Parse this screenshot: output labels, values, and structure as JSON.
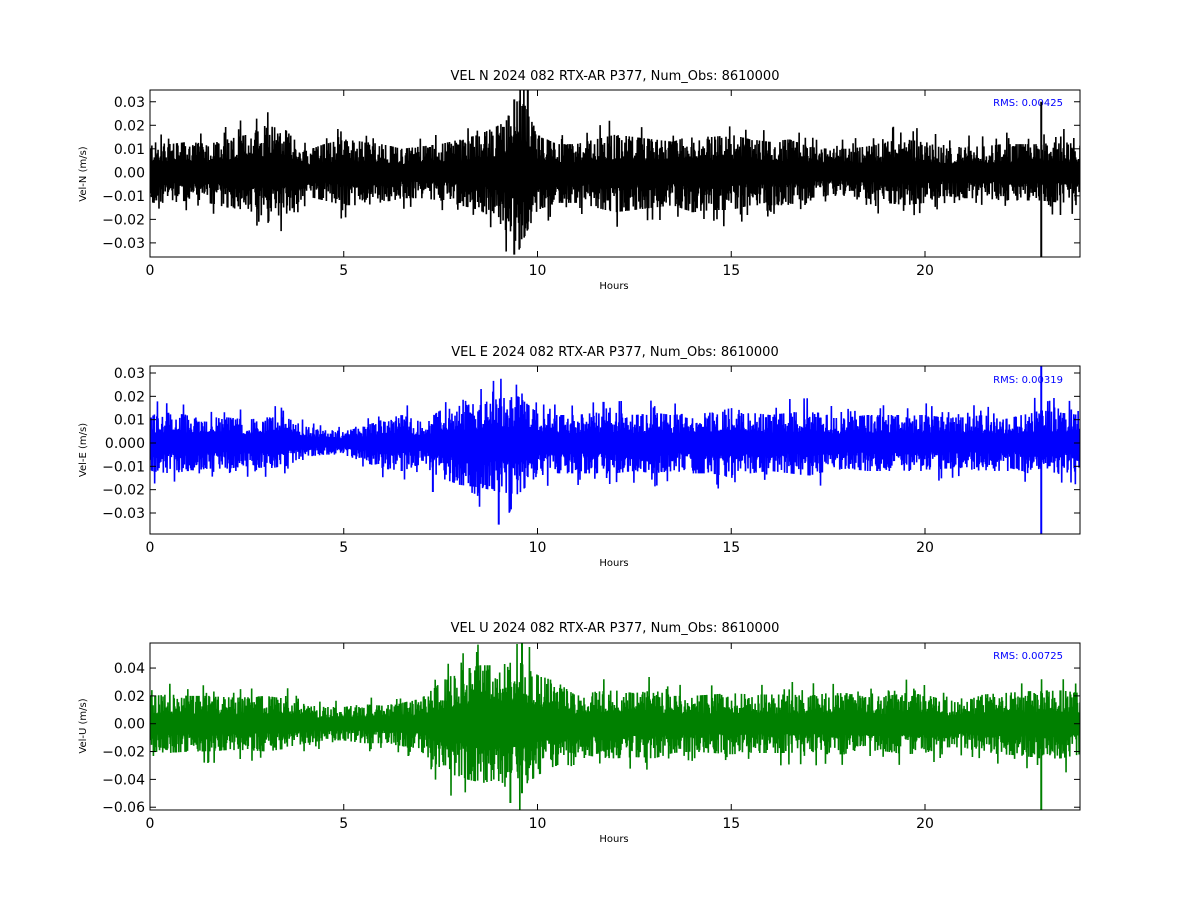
{
  "chart_data": [
    {
      "type": "line",
      "title": "VEL N 2024 082 RTX-AR  P377, Num_Obs: 8610000",
      "xlabel": "Hours",
      "ylabel": "Vel-N (m/s)",
      "xlim": [
        0,
        24
      ],
      "ylim": [
        -0.036,
        0.035
      ],
      "xticks": [
        0,
        5,
        10,
        15,
        20
      ],
      "xtick_labels": [
        "0",
        "5",
        "10",
        "15",
        "20"
      ],
      "yticks": [
        -0.03,
        -0.02,
        -0.01,
        0.0,
        0.01,
        0.02,
        0.03
      ],
      "ytick_labels": [
        "−0.03",
        "−0.02",
        "−0.01",
        "0.00",
        "0.01",
        "0.02",
        "0.03"
      ],
      "annotation": "RMS:  0.00425",
      "rms": 0.00425,
      "color": "#000000",
      "grid": false,
      "series": [
        {
          "envelope": {
            "x": [
              0,
              0.5,
              1,
              1.5,
              2,
              2.5,
              3,
              3.5,
              4,
              4.5,
              5,
              5.5,
              6,
              6.5,
              7,
              7.5,
              8,
              8.5,
              9,
              9.3,
              9.5,
              9.7,
              10,
              10.5,
              11,
              11.5,
              12,
              12.5,
              13,
              13.5,
              14,
              14.5,
              15,
              15.5,
              16,
              16.5,
              17,
              17.5,
              18,
              18.5,
              19,
              19.5,
              20,
              20.5,
              21,
              21.5,
              22,
              22.5,
              23,
              23.5,
              24
            ],
            "upper": [
              0.013,
              0.012,
              0.013,
              0.012,
              0.014,
              0.016,
              0.02,
              0.018,
              0.009,
              0.012,
              0.014,
              0.013,
              0.012,
              0.01,
              0.011,
              0.012,
              0.014,
              0.016,
              0.02,
              0.025,
              0.031,
              0.028,
              0.016,
              0.012,
              0.012,
              0.014,
              0.016,
              0.015,
              0.014,
              0.013,
              0.016,
              0.015,
              0.016,
              0.014,
              0.013,
              0.014,
              0.011,
              0.01,
              0.01,
              0.011,
              0.013,
              0.014,
              0.013,
              0.01,
              0.011,
              0.011,
              0.012,
              0.012,
              0.012,
              0.013,
              0.012
            ],
            "lower": [
              -0.013,
              -0.013,
              -0.012,
              -0.013,
              -0.015,
              -0.016,
              -0.019,
              -0.018,
              -0.01,
              -0.012,
              -0.014,
              -0.014,
              -0.013,
              -0.011,
              -0.011,
              -0.012,
              -0.014,
              -0.016,
              -0.021,
              -0.027,
              -0.034,
              -0.026,
              -0.016,
              -0.013,
              -0.013,
              -0.015,
              -0.017,
              -0.016,
              -0.015,
              -0.014,
              -0.017,
              -0.016,
              -0.016,
              -0.014,
              -0.014,
              -0.014,
              -0.011,
              -0.01,
              -0.01,
              -0.011,
              -0.013,
              -0.014,
              -0.013,
              -0.01,
              -0.011,
              -0.011,
              -0.012,
              -0.012,
              -0.012,
              -0.013,
              -0.012
            ]
          },
          "spikes": [
            {
              "x": 9.75,
              "low": -0.012,
              "high": 0.035
            },
            {
              "x": 9.4,
              "low": -0.035,
              "high": 0.031
            },
            {
              "x": 23.0,
              "low": -0.036,
              "high": 0.03
            }
          ]
        }
      ]
    },
    {
      "type": "line",
      "title": "VEL E 2024 082 RTX-AR  P377, Num_Obs: 8610000",
      "xlabel": "Hours",
      "ylabel": "Vel-E (m/s)",
      "xlim": [
        0,
        24
      ],
      "ylim": [
        -0.039,
        0.033
      ],
      "xticks": [
        0,
        5,
        10,
        15,
        20
      ],
      "xtick_labels": [
        "0",
        "5",
        "10",
        "15",
        "20"
      ],
      "yticks": [
        -0.03,
        -0.02,
        -0.01,
        0.0,
        0.01,
        0.02,
        0.03
      ],
      "ytick_labels": [
        "−0.03",
        "−0.02",
        "−0.01",
        "0.000",
        "0.01",
        "0.02",
        "0.03"
      ],
      "annotation": "RMS:  0.00319",
      "rms": 0.00319,
      "color": "#0000ff",
      "grid": false,
      "series": [
        {
          "envelope": {
            "x": [
              0,
              0.5,
              1,
              1.5,
              2,
              2.5,
              3,
              3.5,
              4,
              4.5,
              5,
              5.5,
              6,
              6.5,
              7,
              7.5,
              8,
              8.5,
              9,
              9.5,
              10,
              10.5,
              11,
              11.5,
              12,
              12.5,
              13,
              13.5,
              14,
              14.5,
              15,
              15.5,
              16,
              16.5,
              17,
              17.5,
              18,
              18.5,
              19,
              19.5,
              20,
              20.5,
              21,
              21.5,
              22,
              22.5,
              23,
              23.5,
              24
            ],
            "upper": [
              0.012,
              0.013,
              0.012,
              0.011,
              0.011,
              0.01,
              0.011,
              0.011,
              0.007,
              0.006,
              0.005,
              0.007,
              0.01,
              0.012,
              0.009,
              0.014,
              0.016,
              0.017,
              0.019,
              0.02,
              0.013,
              0.012,
              0.012,
              0.013,
              0.013,
              0.012,
              0.013,
              0.012,
              0.013,
              0.013,
              0.015,
              0.013,
              0.012,
              0.013,
              0.014,
              0.012,
              0.011,
              0.012,
              0.012,
              0.012,
              0.012,
              0.011,
              0.011,
              0.012,
              0.01,
              0.012,
              0.014,
              0.013,
              0.012
            ],
            "lower": [
              -0.012,
              -0.013,
              -0.012,
              -0.011,
              -0.011,
              -0.01,
              -0.011,
              -0.01,
              -0.006,
              -0.005,
              -0.005,
              -0.008,
              -0.011,
              -0.012,
              -0.009,
              -0.015,
              -0.018,
              -0.019,
              -0.021,
              -0.022,
              -0.014,
              -0.013,
              -0.013,
              -0.013,
              -0.013,
              -0.012,
              -0.013,
              -0.012,
              -0.013,
              -0.013,
              -0.015,
              -0.013,
              -0.012,
              -0.013,
              -0.014,
              -0.012,
              -0.011,
              -0.012,
              -0.012,
              -0.012,
              -0.012,
              -0.011,
              -0.011,
              -0.012,
              -0.01,
              -0.012,
              -0.015,
              -0.013,
              -0.012
            ]
          },
          "spikes": [
            {
              "x": 9.0,
              "low": -0.035,
              "high": 0.015
            },
            {
              "x": 7.3,
              "low": -0.021,
              "high": 0.008
            },
            {
              "x": 23.0,
              "low": -0.039,
              "high": 0.033
            }
          ]
        }
      ]
    },
    {
      "type": "line",
      "title": "VEL U 2024 082 RTX-AR  P377, Num_Obs: 8610000",
      "xlabel": "Hours",
      "ylabel": "Vel-U (m/s)",
      "xlim": [
        0,
        24
      ],
      "ylim": [
        -0.062,
        0.058
      ],
      "xticks": [
        0,
        5,
        10,
        15,
        20
      ],
      "xtick_labels": [
        "0",
        "5",
        "10",
        "15",
        "20"
      ],
      "yticks": [
        -0.06,
        -0.04,
        -0.02,
        0.0,
        0.02,
        0.04
      ],
      "ytick_labels": [
        "−0.06",
        "−0.04",
        "−0.02",
        "0.00",
        "0.02",
        "0.04"
      ],
      "annotation": "RMS:  0.00725",
      "rms": 0.00725,
      "color": "#008000",
      "grid": false,
      "series": [
        {
          "envelope": {
            "x": [
              0,
              0.5,
              1,
              1.5,
              2,
              2.5,
              3,
              3.5,
              4,
              4.5,
              5,
              5.5,
              6,
              6.5,
              7,
              7.5,
              8,
              8.5,
              9,
              9.5,
              10,
              10.5,
              11,
              11.5,
              12,
              12.5,
              13,
              13.5,
              14,
              14.5,
              15,
              15.5,
              16,
              16.5,
              17,
              17.5,
              18,
              18.5,
              19,
              19.5,
              20,
              20.5,
              21,
              21.5,
              22,
              22.5,
              23,
              23.5,
              24
            ],
            "upper": [
              0.02,
              0.021,
              0.02,
              0.02,
              0.019,
              0.019,
              0.02,
              0.018,
              0.014,
              0.012,
              0.012,
              0.014,
              0.013,
              0.015,
              0.018,
              0.03,
              0.038,
              0.042,
              0.042,
              0.045,
              0.035,
              0.03,
              0.02,
              0.023,
              0.024,
              0.022,
              0.024,
              0.02,
              0.02,
              0.021,
              0.022,
              0.021,
              0.021,
              0.021,
              0.02,
              0.022,
              0.022,
              0.019,
              0.02,
              0.022,
              0.021,
              0.017,
              0.016,
              0.021,
              0.022,
              0.023,
              0.024,
              0.024,
              0.022
            ],
            "lower": [
              -0.02,
              -0.021,
              -0.02,
              -0.02,
              -0.019,
              -0.019,
              -0.02,
              -0.018,
              -0.014,
              -0.012,
              -0.012,
              -0.014,
              -0.014,
              -0.016,
              -0.02,
              -0.032,
              -0.039,
              -0.042,
              -0.044,
              -0.048,
              -0.037,
              -0.03,
              -0.021,
              -0.024,
              -0.025,
              -0.024,
              -0.025,
              -0.021,
              -0.02,
              -0.021,
              -0.022,
              -0.021,
              -0.021,
              -0.021,
              -0.02,
              -0.022,
              -0.022,
              -0.019,
              -0.02,
              -0.022,
              -0.021,
              -0.017,
              -0.017,
              -0.021,
              -0.022,
              -0.023,
              -0.025,
              -0.025,
              -0.022
            ]
          },
          "spikes": [
            {
              "x": 9.6,
              "low": -0.05,
              "high": 0.058
            },
            {
              "x": 9.3,
              "low": -0.057,
              "high": 0.03
            },
            {
              "x": 23.0,
              "low": -0.062,
              "high": 0.015
            }
          ]
        }
      ]
    }
  ]
}
